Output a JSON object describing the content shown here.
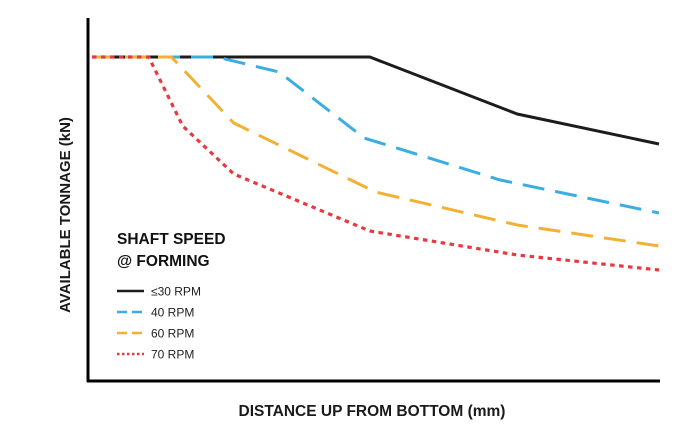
{
  "chart_data": {
    "type": "line",
    "title": "",
    "xlabel": "DISTANCE UP FROM BOTTOM (mm)",
    "ylabel": "AVAILABLE TONNAGE (kN)",
    "xlim": [
      0,
      100
    ],
    "ylim": [
      0,
      100
    ],
    "grid": false,
    "ticks_shown": false,
    "legend": {
      "title_lines": [
        "SHAFT SPEED",
        "@ FORMING"
      ],
      "placement": "bottom-left"
    },
    "series": [
      {
        "name": "≤30 RPM",
        "color": "#1c1c1c",
        "style": "solid",
        "x": [
          0,
          49,
          75,
          100
        ],
        "y": [
          100,
          100,
          81,
          71
        ]
      },
      {
        "name": "40 RPM",
        "color": "#3aaee0",
        "style": "dash",
        "x": [
          0,
          22,
          33,
          48,
          72,
          100
        ],
        "y": [
          100,
          100,
          95,
          73,
          59,
          48
        ]
      },
      {
        "name": "60 RPM",
        "color": "#f0b135",
        "style": "dash",
        "x": [
          0,
          14,
          19,
          25,
          50,
          75,
          100
        ],
        "y": [
          100,
          100,
          90,
          78,
          55,
          44,
          37
        ]
      },
      {
        "name": "70 RPM",
        "color": "#e8393f",
        "style": "dot",
        "x": [
          0,
          10,
          16,
          25,
          49,
          75,
          100
        ],
        "y": [
          100,
          100,
          77,
          61,
          42,
          34,
          29
        ]
      }
    ]
  }
}
